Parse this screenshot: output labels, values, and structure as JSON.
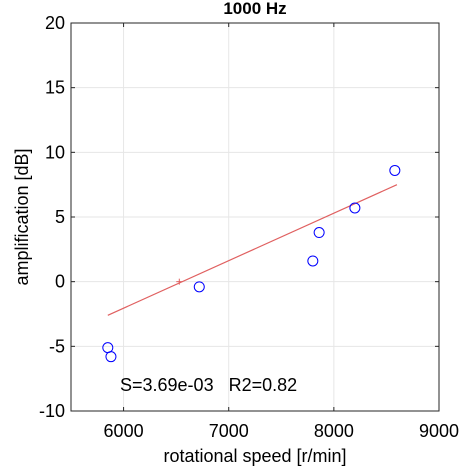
{
  "chart_data": {
    "type": "scatter",
    "title": "1000 Hz",
    "xlabel": "rotational speed [r/min]",
    "ylabel": "amplification [dB]",
    "xlim": [
      5500,
      9000
    ],
    "ylim": [
      -10,
      20
    ],
    "xticks": [
      6000,
      7000,
      8000,
      9000
    ],
    "yticks": [
      -10,
      -5,
      0,
      5,
      10,
      15,
      20
    ],
    "xtick_labels": [
      "6000",
      "7000",
      "8000",
      "9000"
    ],
    "ytick_labels": [
      "-10",
      "-5",
      "0",
      "5",
      "10",
      "15",
      "20"
    ],
    "grid": true,
    "series": [
      {
        "kind": "scatter",
        "marker": "circle",
        "color": "#0000ff",
        "x": [
          5850,
          5880,
          6720,
          7800,
          7860,
          8200,
          8580
        ],
        "y": [
          -5.1,
          -5.8,
          -0.4,
          1.6,
          3.8,
          5.7,
          8.6
        ]
      },
      {
        "kind": "fit-line",
        "color": "#e06060",
        "x": [
          5850,
          8600
        ],
        "y": [
          -2.6,
          7.5
        ]
      },
      {
        "kind": "point",
        "marker": "plus",
        "color": "#e06060",
        "x": [
          6530
        ],
        "y": [
          0.0
        ]
      }
    ],
    "annotation": "S=3.69e-03   R2=0.82"
  }
}
